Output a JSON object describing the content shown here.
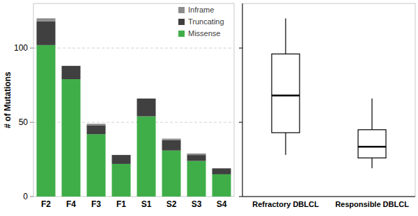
{
  "chart_data": [
    {
      "type": "bar",
      "stacked": true,
      "legend": "upper right",
      "grid": true,
      "y_label": "# of Mutations",
      "categories": [
        "F2",
        "F4",
        "F3",
        "F1",
        "S1",
        "S2",
        "S3",
        "S4"
      ],
      "series": [
        {
          "name": "Missense",
          "color": "#3fae49",
          "values": [
            102,
            79,
            42,
            22,
            54,
            31,
            24,
            15
          ]
        },
        {
          "name": "Truncating",
          "color": "#404040",
          "values": [
            16,
            9,
            6,
            6,
            12,
            7,
            4,
            4
          ]
        },
        {
          "name": "Inframe",
          "color": "#8c8c8c",
          "values": [
            2,
            0,
            1,
            0,
            0,
            1,
            1,
            0
          ]
        }
      ],
      "ylim": [
        0,
        130
      ],
      "yticks": [
        0,
        50,
        100
      ]
    },
    {
      "type": "box",
      "tick_labels": "x",
      "categories": [
        "Refractory DBLCL",
        "Responsible DBLCL"
      ],
      "min": [
        28,
        19
      ],
      "q1": [
        43,
        26
      ],
      "median": [
        68,
        33.5
      ],
      "q3": [
        96,
        45
      ],
      "max": [
        120,
        66
      ],
      "ylim": [
        0,
        130
      ],
      "yticks": [
        0,
        50,
        100
      ]
    }
  ]
}
